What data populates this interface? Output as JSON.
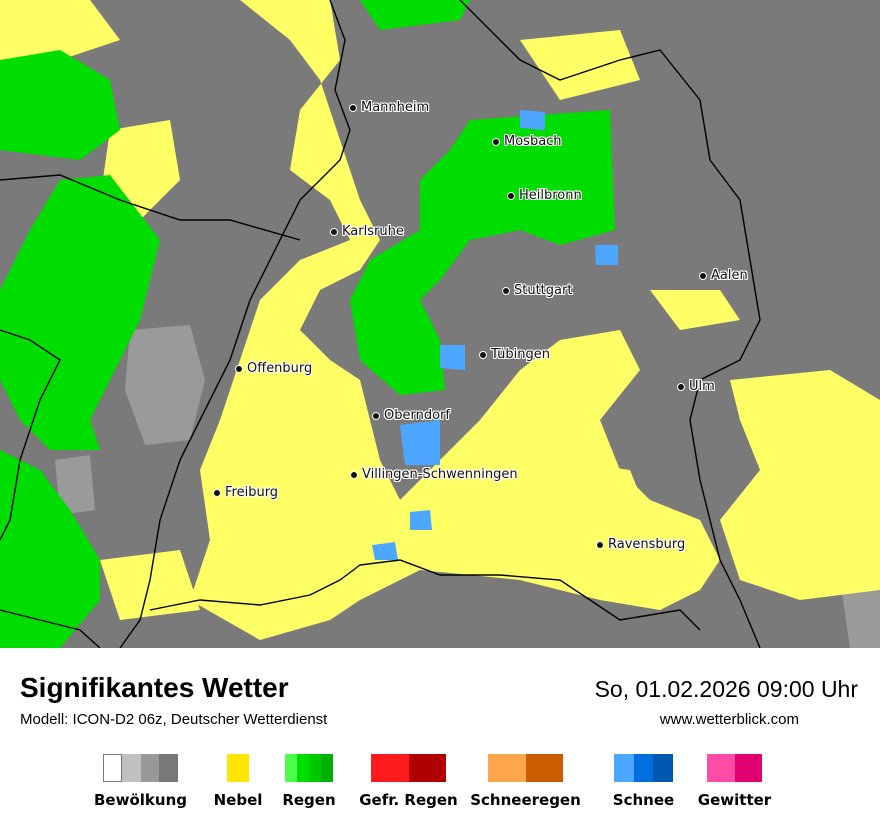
{
  "map": {
    "colors": {
      "background": "#7a7a7a",
      "fog": "#ffff66",
      "rain": "#00dd00",
      "snow": "#4da6ff",
      "light_cloud": "#9a9a9a",
      "border": "#000000"
    },
    "cities": [
      {
        "name": "Mannheim"
      },
      {
        "name": "Mosbach"
      },
      {
        "name": "Heilbronn"
      },
      {
        "name": "Karlsruhe"
      },
      {
        "name": "Aalen"
      },
      {
        "name": "Stuttgart"
      },
      {
        "name": "Tübingen"
      },
      {
        "name": "Offenburg"
      },
      {
        "name": "Ulm"
      },
      {
        "name": "Oberndorf"
      },
      {
        "name": "Villingen-Schwenningen"
      },
      {
        "name": "Freiburg"
      },
      {
        "name": "Ravensburg"
      }
    ]
  },
  "footer": {
    "title": "Signifikantes Wetter",
    "model": "Modell: ICON-D2 06z, Deutscher Wetterdienst",
    "datetime": "So, 01.02.2026 09:00 Uhr",
    "website": "www.wetterblick.com"
  },
  "legend": [
    {
      "label": "Bewölkung",
      "colors": [
        "#ffffff",
        "#c0c0c0",
        "#989898",
        "#787878"
      ]
    },
    {
      "label": "Nebel",
      "colors": [
        "#ffe600"
      ]
    },
    {
      "label": "Regen",
      "colors": [
        "#4cff4c",
        "#00e000",
        "#00c800",
        "#00b000"
      ]
    },
    {
      "label": "Gefr. Regen",
      "colors": [
        "#ff1c1c",
        "#b00000"
      ]
    },
    {
      "label": "Schneeregen",
      "colors": [
        "#ffa64c",
        "#cc5c00"
      ]
    },
    {
      "label": "Schnee",
      "colors": [
        "#4da6ff",
        "#0070e0",
        "#0058b0"
      ]
    },
    {
      "label": "Gewitter",
      "colors": [
        "#ff4ca6",
        "#e0006e"
      ]
    }
  ]
}
